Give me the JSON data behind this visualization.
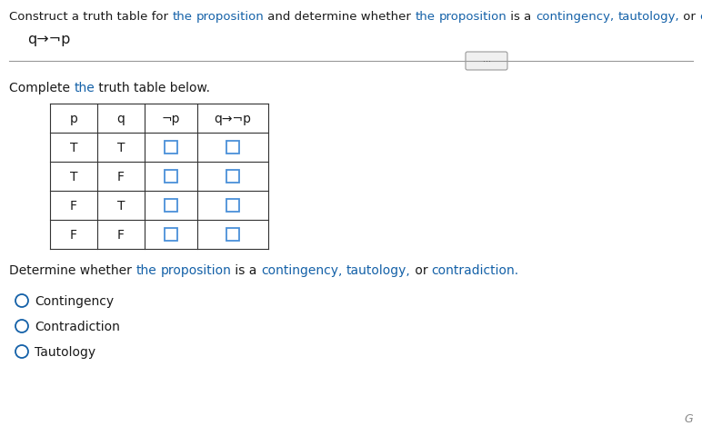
{
  "proposition": "q→¬p",
  "table_headers": [
    "p",
    "q",
    "¬p",
    "q→¬p"
  ],
  "table_rows": [
    [
      "T",
      "T",
      "",
      ""
    ],
    [
      "T",
      "F",
      "",
      ""
    ],
    [
      "F",
      "T",
      "",
      ""
    ],
    [
      "F",
      "F",
      "",
      ""
    ]
  ],
  "options": [
    "Contingency",
    "Contradiction",
    "Tautology"
  ],
  "color_blue": "#1461A8",
  "color_black": "#1a1a1a",
  "color_white": "#FFFFFF",
  "color_box_blue": "#4A90D9",
  "color_table_border": "#333333",
  "color_radio_blue": "#1461A8",
  "color_bg": "#FFFFFF",
  "color_divider": "#999999",
  "color_btn_border": "#999999",
  "color_btn_bg": "#F0F0F0",
  "title_parts": [
    [
      "Construct a truth table for ",
      "#1a1a1a"
    ],
    [
      "the",
      "#1461A8"
    ],
    [
      " ",
      "#1a1a1a"
    ],
    [
      "proposition",
      "#1461A8"
    ],
    [
      " and determine whether ",
      "#1a1a1a"
    ],
    [
      "the",
      "#1461A8"
    ],
    [
      " ",
      "#1a1a1a"
    ],
    [
      "proposition",
      "#1461A8"
    ],
    [
      " is a ",
      "#1a1a1a"
    ],
    [
      "contingency,",
      "#1461A8"
    ],
    [
      " ",
      "#1a1a1a"
    ],
    [
      "tautology,",
      "#1461A8"
    ],
    [
      " or ",
      "#1a1a1a"
    ],
    [
      "contradiction.",
      "#1461A8"
    ]
  ],
  "complete_parts": [
    [
      "Complete ",
      "#1a1a1a"
    ],
    [
      "the",
      "#1461A8"
    ],
    [
      " truth table below.",
      "#1a1a1a"
    ]
  ],
  "determine_parts": [
    [
      "Determine whether ",
      "#1a1a1a"
    ],
    [
      "the",
      "#1461A8"
    ],
    [
      " ",
      "#1a1a1a"
    ],
    [
      "proposition",
      "#1461A8"
    ],
    [
      " is a ",
      "#1a1a1a"
    ],
    [
      "contingency,",
      "#1461A8"
    ],
    [
      " ",
      "#1a1a1a"
    ],
    [
      "tautology,",
      "#1461A8"
    ],
    [
      " or ",
      "#1a1a1a"
    ],
    [
      "contradiction.",
      "#1461A8"
    ]
  ],
  "font_size_title": 9.5,
  "font_size_prop": 11.5,
  "font_size_table": 10,
  "font_size_section": 10,
  "font_size_option": 10
}
